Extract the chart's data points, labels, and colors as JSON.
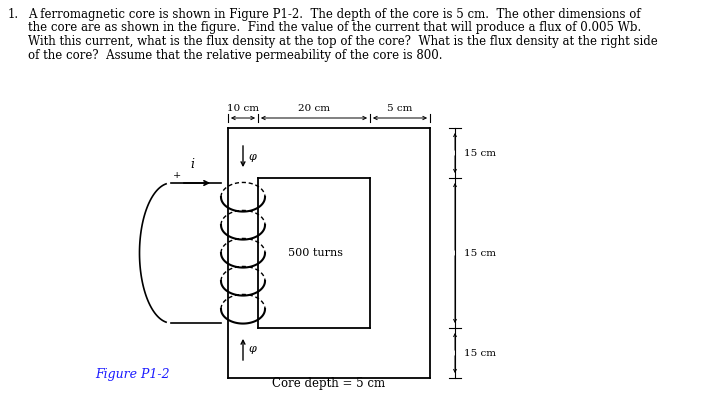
{
  "text_problem_line1": "A ferromagnetic core is shown in Figure P1-2.  The depth of the core is 5 cm.  The other dimensions of",
  "text_problem_line2": "the core are as shown in the figure.  Find the value of the current that will produce a flux of 0.005 Wb.",
  "text_problem_line3": "With this current, what is the flux density at the top of the core?  What is the flux density at the right side",
  "text_problem_line4": "of the core?  Assume that the relative permeability of the core is 800.",
  "problem_number": "1.",
  "figure_label": "Figure P1-2",
  "core_depth_label": "Core depth = 5 cm",
  "dim_10cm": "10 cm",
  "dim_20cm": "20 cm",
  "dim_5cm": "5 cm",
  "dim_15cm_top": "15 cm",
  "dim_15cm_mid": "15 cm",
  "dim_15cm_bot": "15 cm",
  "turns_label": "500 turns",
  "phi_label": "φ",
  "i_label": "i",
  "bg_color": "#ffffff",
  "text_color": "#000000",
  "figure_label_color": "#1a1aff",
  "line_color": "#000000",
  "fig_width": 7.01,
  "fig_height": 3.98
}
